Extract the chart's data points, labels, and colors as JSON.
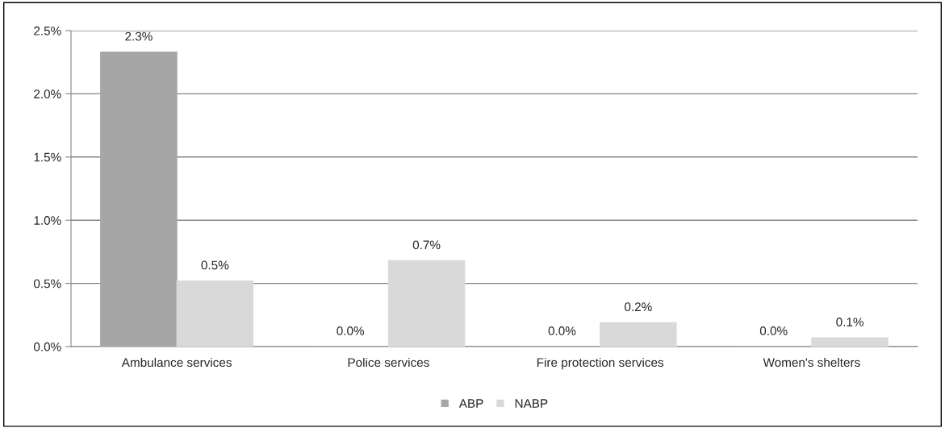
{
  "chart_data": {
    "type": "bar",
    "categories": [
      "Ambulance services",
      "Police services",
      "Fire protection services",
      "Women's shelters"
    ],
    "series": [
      {
        "name": "ABP",
        "color": "#a6a6a6",
        "values": [
          2.33,
          0,
          0,
          0
        ],
        "value_labels": [
          "2.3%",
          "0.0%",
          "0.0%",
          "0.0%"
        ]
      },
      {
        "name": "NABP",
        "color": "#d9d9d9",
        "values": [
          0.52,
          0.68,
          0.19,
          0.07
        ],
        "value_labels": [
          "0.5%",
          "0.7%",
          "0.2%",
          "0.1%"
        ]
      }
    ],
    "ylim": [
      0,
      2.5
    ],
    "yticks": [
      {
        "value": 0,
        "label": "0.0%"
      },
      {
        "value": 0.5,
        "label": "0.5%"
      },
      {
        "value": 1.0,
        "label": "1.0%"
      },
      {
        "value": 1.5,
        "label": "1.5%"
      },
      {
        "value": 2.0,
        "label": "2.0%"
      },
      {
        "value": 2.5,
        "label": "2.5%"
      }
    ],
    "grid": "y",
    "legend": "bottom"
  }
}
